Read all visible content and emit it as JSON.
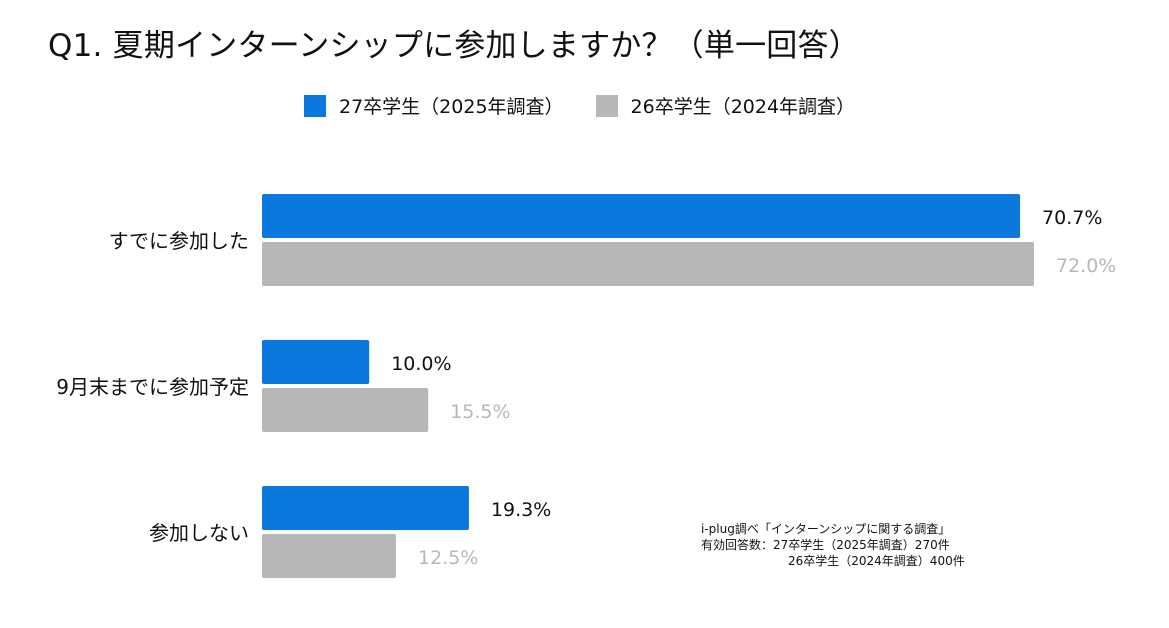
{
  "page": {
    "title": "Q1. 夏期インターンシップに参加しますか？（単一回答）"
  },
  "legend": [
    {
      "label": "27卒学生（2025年調査）",
      "color": "#0b78df"
    },
    {
      "label": "26卒学生（2024年調査）",
      "color": "#b7b7b7"
    }
  ],
  "source_note": {
    "line1": "i-plug調べ「インターンシップに関する調査」",
    "line2": "有効回答数：27卒学生（2025年調査）270件",
    "line3": "26卒学生（2024年調査）400件"
  },
  "chart_data": {
    "type": "bar",
    "orientation": "horizontal",
    "categories": [
      "すでに参加した",
      "9月末までに参加予定",
      "参加しない"
    ],
    "series": [
      {
        "name": "27卒学生（2025年調査）",
        "values": [
          70.7,
          10.0,
          19.3
        ],
        "labels": [
          "70.7%",
          "10.0%",
          "19.3%"
        ],
        "color": "#0b78df",
        "label_color": "#111111"
      },
      {
        "name": "26卒学生（2024年調査）",
        "values": [
          72.0,
          15.5,
          12.5
        ],
        "labels": [
          "72.0%",
          "15.5%",
          "12.5%"
        ],
        "color": "#b7b7b7",
        "label_color": "#b7b7b7"
      }
    ],
    "xlim": [
      0,
      72.0
    ],
    "grid": false,
    "legend_position": "top"
  }
}
